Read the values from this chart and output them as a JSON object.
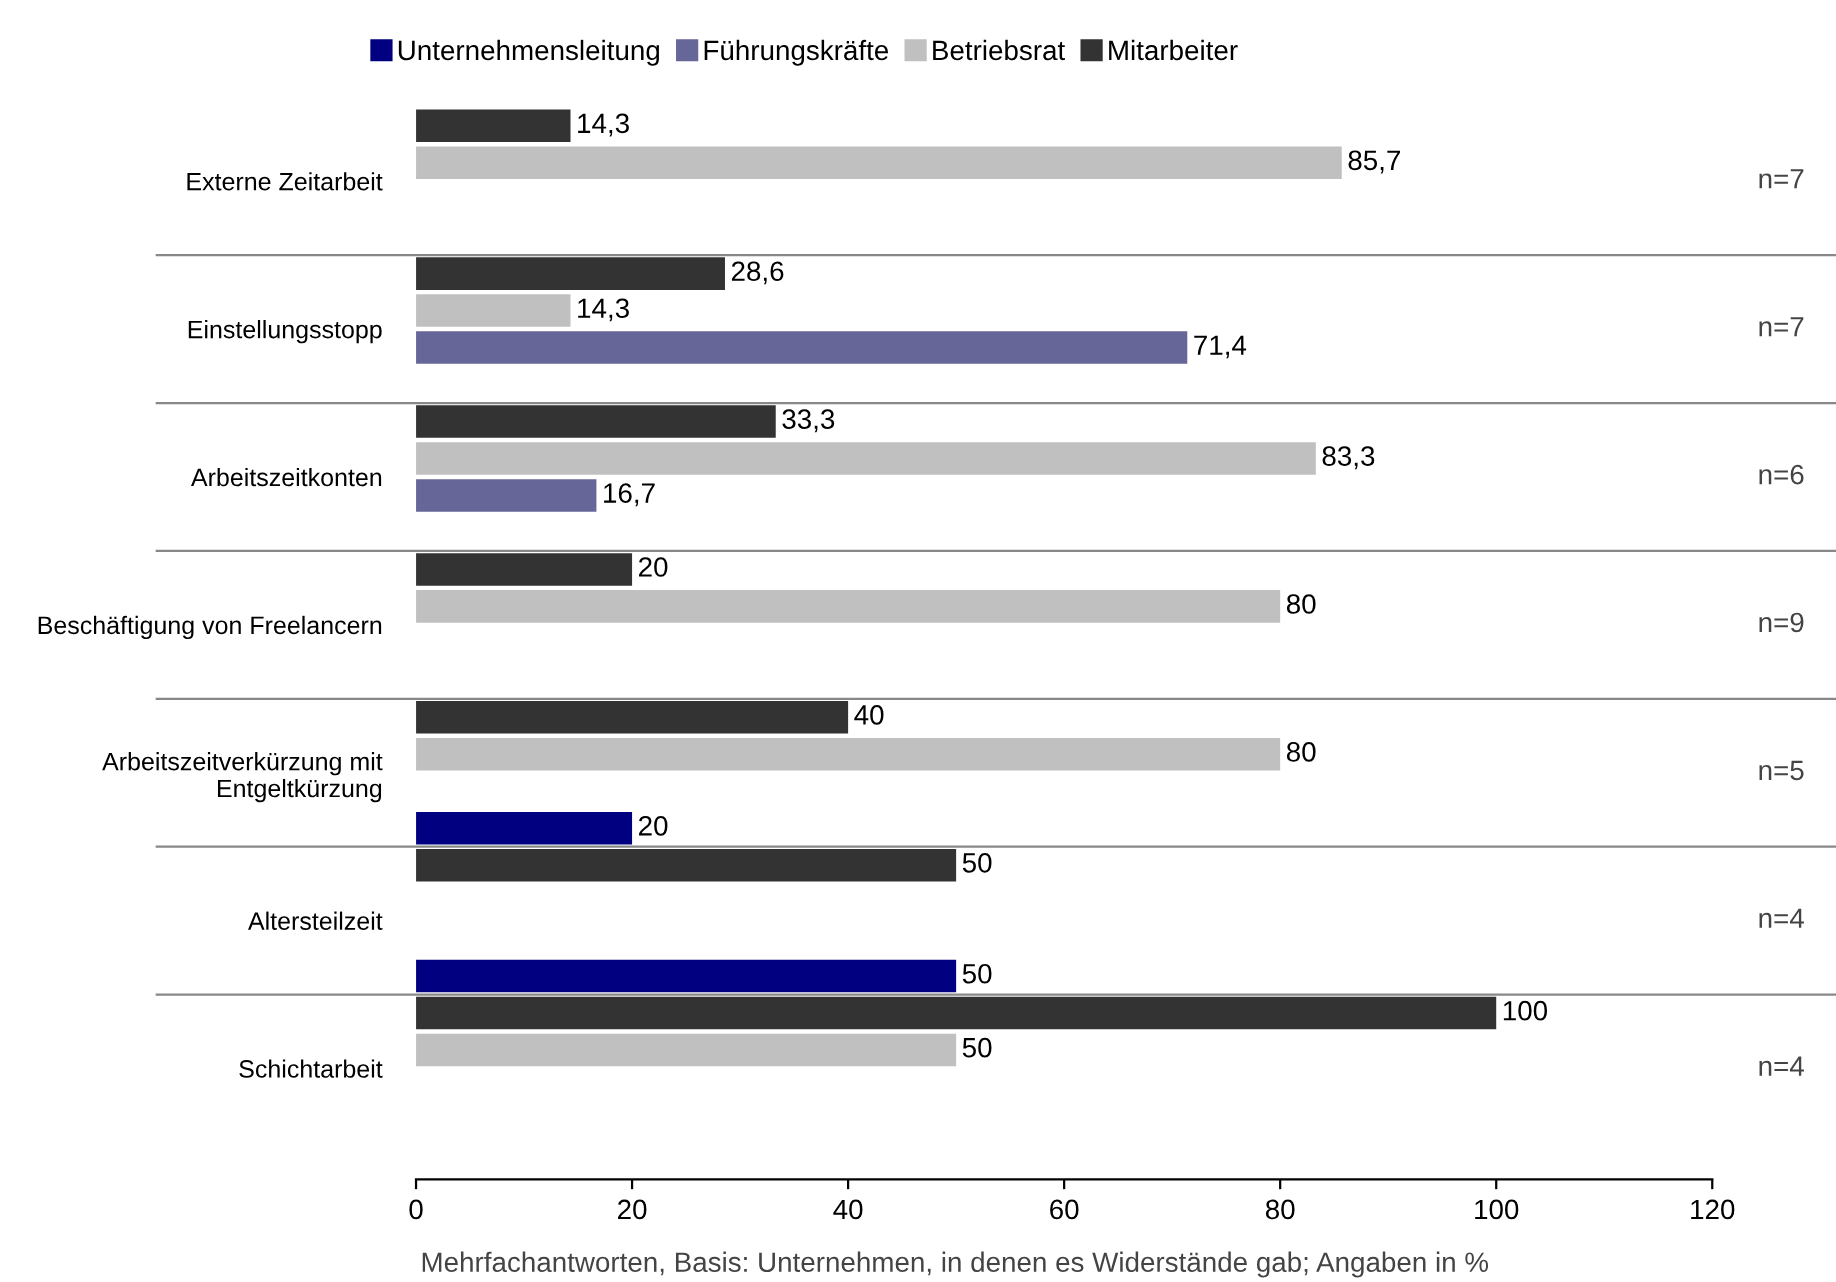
{
  "chart_data": {
    "type": "bar",
    "orientation": "horizontal",
    "categories": [
      "Externe Zeitarbeit",
      "Einstellungsstopp",
      "Arbeitszeitkonten",
      "Beschäftigung von Freelancern",
      "Arbeitszeitverkürzung mit\nEntgeltkürzung",
      "Altersteilzeit",
      "Schichtarbeit"
    ],
    "series": [
      {
        "name": "Mitarbeiter",
        "color": "#333333",
        "values": [
          14.3,
          28.6,
          33.3,
          20,
          40,
          50,
          100
        ],
        "value_labels": [
          "14,3",
          "28,6",
          "33,3",
          "20",
          "40",
          "50",
          "100"
        ]
      },
      {
        "name": "Betriebsrat",
        "color": "#c0c0c0",
        "values": [
          85.7,
          14.3,
          83.3,
          80,
          80,
          null,
          50
        ],
        "value_labels": [
          "85,7",
          "14,3",
          "83,3",
          "80",
          "80",
          null,
          "50"
        ]
      },
      {
        "name": "Führungskräfte",
        "color": "#666699",
        "values": [
          null,
          71.4,
          16.7,
          null,
          null,
          null,
          null
        ],
        "value_labels": [
          null,
          "71,4",
          "16,7",
          null,
          null,
          null,
          null
        ]
      },
      {
        "name": "Unternehmensleitung",
        "color": "#000080",
        "values": [
          null,
          null,
          null,
          null,
          20,
          50,
          null
        ],
        "value_labels": [
          null,
          null,
          null,
          null,
          "20",
          "50",
          null
        ]
      }
    ],
    "xlim": [
      0,
      120
    ],
    "xticks": [
      0,
      20,
      40,
      60,
      80,
      100,
      120
    ],
    "grid": "y",
    "legend": "top",
    "annotations": [
      "n=7",
      "n=7",
      "n=6",
      "n=9",
      "n=5",
      "n=4",
      "n=4",
      "Mehrfachantworten, Basis: Unternehmen, in denen es Widerstände gab; Angaben in %"
    ]
  }
}
